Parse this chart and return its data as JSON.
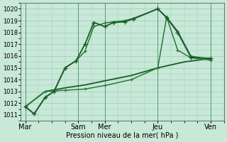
{
  "xlabel": "Pression niveau de la mer( hPa )",
  "ylim": [
    1010.5,
    1020.5
  ],
  "yticks": [
    1011,
    1012,
    1013,
    1014,
    1015,
    1016,
    1017,
    1018,
    1019,
    1020
  ],
  "xtick_labels": [
    "Mar",
    "Sam",
    "Mer",
    "Jeu",
    "Ven"
  ],
  "xtick_positions": [
    0,
    24,
    36,
    60,
    84
  ],
  "xlim": [
    -2,
    90
  ],
  "bg_color": "#c8e8d8",
  "grid_color": "#99ccbb",
  "dark_green": "#1a5c28",
  "mid_green": "#2a7a3a",
  "line1": {
    "x": [
      0,
      4,
      9,
      13,
      18,
      23,
      27,
      31,
      36,
      40,
      45,
      49,
      60,
      64,
      69,
      75,
      84
    ],
    "y": [
      1011.7,
      1011.1,
      1012.5,
      1013.0,
      1015.0,
      1015.6,
      1017.0,
      1018.85,
      1018.5,
      1018.85,
      1018.9,
      1019.15,
      1020.0,
      1019.25,
      1018.0,
      1015.9,
      1015.8
    ]
  },
  "line2": {
    "x": [
      0,
      4,
      9,
      13,
      18,
      23,
      27,
      31,
      36,
      40,
      45,
      49,
      60,
      64,
      69,
      75,
      84
    ],
    "y": [
      1011.7,
      1011.1,
      1012.5,
      1013.0,
      1015.0,
      1015.6,
      1016.4,
      1018.5,
      1018.8,
      1018.9,
      1019.0,
      1019.2,
      1020.0,
      1019.3,
      1018.1,
      1016.0,
      1015.7
    ]
  },
  "line3": {
    "x": [
      0,
      9,
      18,
      27,
      36,
      48,
      60,
      72,
      84
    ],
    "y": [
      1011.7,
      1013.0,
      1013.3,
      1013.55,
      1013.9,
      1014.35,
      1015.0,
      1015.5,
      1015.8
    ]
  },
  "line4": {
    "x": [
      0,
      9,
      18,
      27,
      36,
      48,
      60,
      64,
      69,
      75,
      84
    ],
    "y": [
      1011.7,
      1013.0,
      1013.1,
      1013.2,
      1013.5,
      1014.0,
      1015.0,
      1019.3,
      1016.5,
      1015.85,
      1015.65
    ]
  }
}
